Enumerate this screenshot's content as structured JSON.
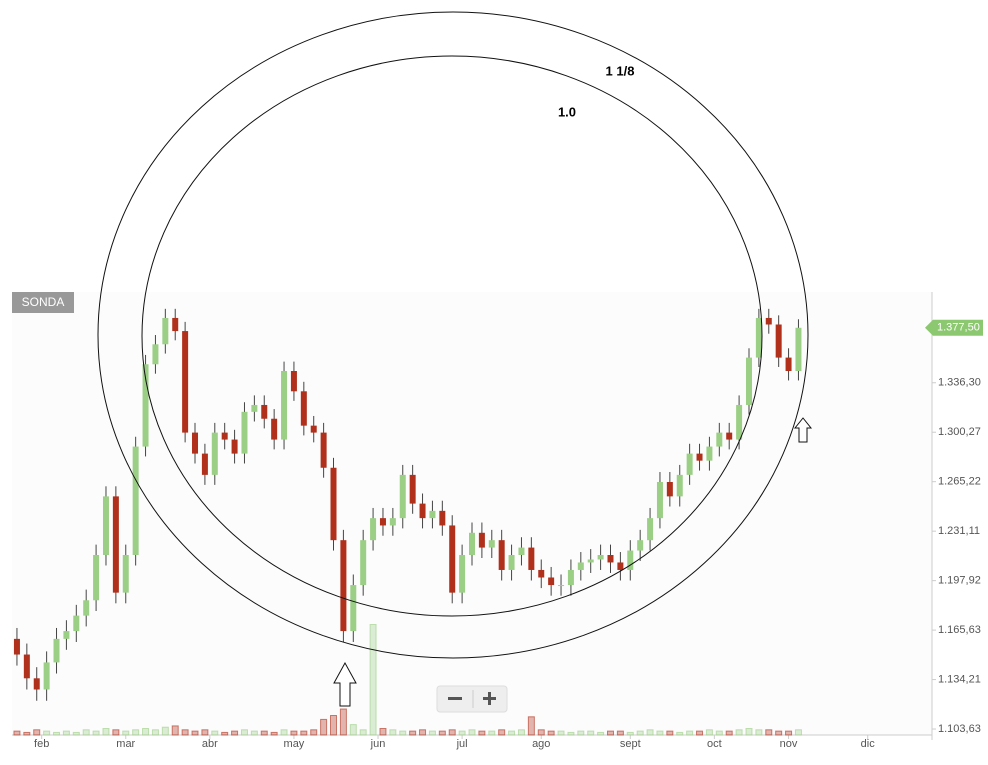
{
  "chart_data": {
    "type": "candlestick",
    "title": "SONDA",
    "log_scale": true,
    "grid": false,
    "up_color": "#9ccf86",
    "down_color": "#b0301c",
    "open": [
      1160,
      1150,
      1135,
      1128,
      1145,
      1160,
      1165,
      1175,
      1185,
      1215,
      1255,
      1190,
      1215,
      1290,
      1350,
      1365,
      1385,
      1375,
      1300,
      1285,
      1270,
      1300,
      1295,
      1285,
      1315,
      1320,
      1310,
      1295,
      1345,
      1330,
      1305,
      1300,
      1275,
      1225,
      1165,
      1195,
      1225,
      1240,
      1235,
      1240,
      1270,
      1250,
      1240,
      1245,
      1235,
      1190,
      1215,
      1230,
      1220,
      1225,
      1205,
      1215,
      1220,
      1205,
      1200,
      1195,
      1195,
      1205,
      1210,
      1212,
      1215,
      1210,
      1205,
      1218,
      1225,
      1240,
      1265,
      1255,
      1270,
      1285,
      1280,
      1290,
      1300,
      1295,
      1320,
      1355,
      1385,
      1380,
      1355,
      1345
    ],
    "high": [
      1167,
      1157,
      1142,
      1152,
      1167,
      1172,
      1182,
      1192,
      1222,
      1262,
      1262,
      1222,
      1297,
      1357,
      1372,
      1392,
      1392,
      1382,
      1307,
      1292,
      1307,
      1307,
      1302,
      1322,
      1327,
      1327,
      1317,
      1352,
      1352,
      1337,
      1312,
      1307,
      1282,
      1232,
      1202,
      1232,
      1247,
      1247,
      1247,
      1277,
      1277,
      1257,
      1252,
      1252,
      1242,
      1222,
      1237,
      1237,
      1232,
      1232,
      1222,
      1227,
      1227,
      1212,
      1207,
      1202,
      1212,
      1217,
      1219,
      1222,
      1222,
      1217,
      1225,
      1232,
      1247,
      1272,
      1272,
      1277,
      1292,
      1292,
      1297,
      1307,
      1307,
      1327,
      1362,
      1392,
      1392,
      1387,
      1362,
      1384
    ],
    "low": [
      1143,
      1128,
      1121,
      1121,
      1138,
      1153,
      1158,
      1168,
      1178,
      1208,
      1183,
      1183,
      1208,
      1283,
      1343,
      1358,
      1368,
      1293,
      1278,
      1263,
      1263,
      1288,
      1278,
      1278,
      1308,
      1303,
      1288,
      1288,
      1323,
      1298,
      1293,
      1268,
      1218,
      1158,
      1158,
      1188,
      1218,
      1228,
      1228,
      1233,
      1243,
      1233,
      1233,
      1228,
      1183,
      1183,
      1208,
      1213,
      1213,
      1198,
      1198,
      1208,
      1198,
      1193,
      1188,
      1188,
      1188,
      1198,
      1203,
      1205,
      1203,
      1198,
      1198,
      1211,
      1218,
      1233,
      1248,
      1248,
      1263,
      1273,
      1273,
      1283,
      1288,
      1288,
      1313,
      1348,
      1373,
      1348,
      1338,
      1338
    ],
    "close": [
      1150,
      1135,
      1128,
      1145,
      1160,
      1165,
      1175,
      1185,
      1215,
      1255,
      1190,
      1215,
      1290,
      1350,
      1365,
      1385,
      1375,
      1300,
      1285,
      1270,
      1300,
      1295,
      1285,
      1315,
      1320,
      1310,
      1295,
      1345,
      1330,
      1305,
      1300,
      1275,
      1225,
      1165,
      1195,
      1225,
      1240,
      1235,
      1240,
      1270,
      1250,
      1240,
      1245,
      1235,
      1190,
      1215,
      1230,
      1220,
      1225,
      1205,
      1215,
      1220,
      1205,
      1200,
      1195,
      1195,
      1205,
      1210,
      1212,
      1215,
      1210,
      1205,
      1218,
      1225,
      1240,
      1265,
      1255,
      1270,
      1285,
      1280,
      1290,
      1300,
      1295,
      1320,
      1355,
      1385,
      1380,
      1355,
      1345,
      1377.5
    ],
    "volume": {
      "ylim": [
        0,
        100
      ],
      "values": [
        3,
        2,
        4,
        3,
        2,
        3,
        2,
        4,
        3,
        5,
        4,
        3,
        4,
        5,
        4,
        6,
        7,
        4,
        3,
        4,
        3,
        2,
        3,
        4,
        3,
        3,
        2,
        4,
        3,
        3,
        4,
        12,
        15,
        20,
        8,
        4,
        85,
        5,
        4,
        3,
        3,
        4,
        3,
        3,
        4,
        3,
        4,
        3,
        3,
        4,
        3,
        4,
        14,
        4,
        3,
        3,
        2,
        3,
        3,
        2,
        3,
        3,
        2,
        3,
        4,
        3,
        3,
        2,
        3,
        3,
        4,
        3,
        3,
        4,
        5,
        4,
        4,
        3,
        3,
        4
      ]
    },
    "xlim": [
      -0.5,
      92.5
    ],
    "xticks": [
      {
        "value": 2.5,
        "label": "feb"
      },
      {
        "value": 11,
        "label": "mar"
      },
      {
        "value": 19.5,
        "label": "abr"
      },
      {
        "value": 28,
        "label": "may"
      },
      {
        "value": 36.5,
        "label": "jun"
      },
      {
        "value": 45,
        "label": "jul"
      },
      {
        "value": 53,
        "label": "ago"
      },
      {
        "value": 62,
        "label": "sept"
      },
      {
        "value": 70.5,
        "label": "oct"
      },
      {
        "value": 78,
        "label": "nov"
      },
      {
        "value": 86,
        "label": "dic"
      }
    ],
    "ylim": [
      1100,
      1405
    ],
    "yticks": [
      {
        "value": 1103.63,
        "label": "1.103,63"
      },
      {
        "value": 1134.21,
        "label": "1.134,21"
      },
      {
        "value": 1165.63,
        "label": "1.165,63"
      },
      {
        "value": 1197.92,
        "label": "1.197,92"
      },
      {
        "value": 1231.11,
        "label": "1.231,11"
      },
      {
        "value": 1265.22,
        "label": "1.265,22"
      },
      {
        "value": 1300.27,
        "label": "1.300,27"
      },
      {
        "value": 1336.3,
        "label": "1.336,30"
      }
    ],
    "last_price": {
      "value": 1377.5,
      "label": "1.377,50"
    },
    "annotations": [
      "1 1/8",
      "1.0"
    ]
  }
}
